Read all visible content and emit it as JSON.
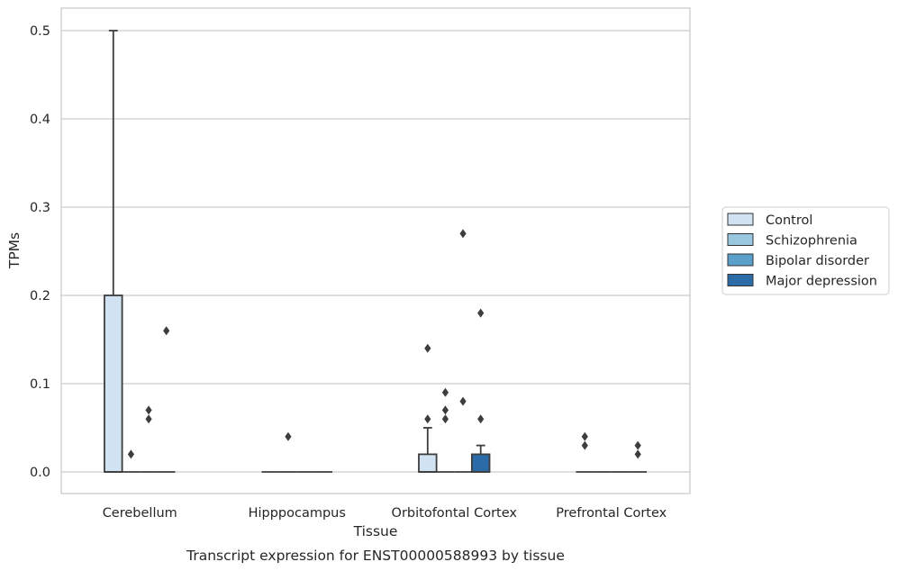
{
  "chart_data": {
    "type": "box",
    "xlabel": "Tissue",
    "ylabel": "TPMs",
    "caption": "Transcript expression for ENST00000588993 by tissue",
    "ylim": [
      -0.025,
      0.525
    ],
    "yticks": [
      0.0,
      0.1,
      0.2,
      0.3,
      0.4,
      0.5
    ],
    "ytick_labels": [
      "0.0",
      "0.1",
      "0.2",
      "0.3",
      "0.4",
      "0.5"
    ],
    "grid": "horizontal",
    "legend_position": "right",
    "categories": [
      "Cerebellum",
      "Hipppocampus",
      "Orbitofontal Cortex",
      "Prefrontal Cortex"
    ],
    "series": [
      {
        "name": "Control",
        "color": "#d1e2f2",
        "boxes": [
          {
            "q1": 0.0,
            "median": 0.0,
            "q3": 0.2,
            "whisker_low": 0.0,
            "whisker_high": 0.5,
            "outliers": []
          },
          {
            "q1": 0.0,
            "median": 0.0,
            "q3": 0.0,
            "whisker_low": 0.0,
            "whisker_high": 0.0,
            "outliers": []
          },
          {
            "q1": 0.0,
            "median": 0.0,
            "q3": 0.02,
            "whisker_low": 0.0,
            "whisker_high": 0.05,
            "outliers": [
              0.06,
              0.14
            ]
          },
          {
            "q1": 0.0,
            "median": 0.0,
            "q3": 0.0,
            "whisker_low": 0.0,
            "whisker_high": 0.0,
            "outliers": [
              0.03,
              0.04
            ]
          }
        ]
      },
      {
        "name": "Schizophrenia",
        "color": "#9ac7e0",
        "boxes": [
          {
            "q1": 0.0,
            "median": 0.0,
            "q3": 0.0,
            "whisker_low": 0.0,
            "whisker_high": 0.0,
            "outliers": [
              0.02
            ]
          },
          {
            "q1": 0.0,
            "median": 0.0,
            "q3": 0.0,
            "whisker_low": 0.0,
            "whisker_high": 0.0,
            "outliers": [
              0.04
            ]
          },
          {
            "q1": 0.0,
            "median": 0.0,
            "q3": 0.0,
            "whisker_low": 0.0,
            "whisker_high": 0.0,
            "outliers": [
              0.06,
              0.07,
              0.09
            ]
          },
          {
            "q1": 0.0,
            "median": 0.0,
            "q3": 0.0,
            "whisker_low": 0.0,
            "whisker_high": 0.0,
            "outliers": []
          }
        ]
      },
      {
        "name": "Bipolar disorder",
        "color": "#5b9fcb",
        "boxes": [
          {
            "q1": 0.0,
            "median": 0.0,
            "q3": 0.0,
            "whisker_low": 0.0,
            "whisker_high": 0.0,
            "outliers": [
              0.06,
              0.07
            ]
          },
          {
            "q1": 0.0,
            "median": 0.0,
            "q3": 0.0,
            "whisker_low": 0.0,
            "whisker_high": 0.0,
            "outliers": []
          },
          {
            "q1": 0.0,
            "median": 0.0,
            "q3": 0.0,
            "whisker_low": 0.0,
            "whisker_high": 0.0,
            "outliers": [
              0.08,
              0.27
            ]
          },
          {
            "q1": 0.0,
            "median": 0.0,
            "q3": 0.0,
            "whisker_low": 0.0,
            "whisker_high": 0.0,
            "outliers": []
          }
        ]
      },
      {
        "name": "Major depression",
        "color": "#2b6ca8",
        "boxes": [
          {
            "q1": 0.0,
            "median": 0.0,
            "q3": 0.0,
            "whisker_low": 0.0,
            "whisker_high": 0.0,
            "outliers": [
              0.16
            ]
          },
          {
            "q1": 0.0,
            "median": 0.0,
            "q3": 0.0,
            "whisker_low": 0.0,
            "whisker_high": 0.0,
            "outliers": []
          },
          {
            "q1": 0.0,
            "median": 0.0,
            "q3": 0.02,
            "whisker_low": 0.0,
            "whisker_high": 0.03,
            "outliers": [
              0.06,
              0.18
            ]
          },
          {
            "q1": 0.0,
            "median": 0.0,
            "q3": 0.0,
            "whisker_low": 0.0,
            "whisker_high": 0.0,
            "outliers": [
              0.02,
              0.03
            ]
          }
        ]
      }
    ]
  }
}
